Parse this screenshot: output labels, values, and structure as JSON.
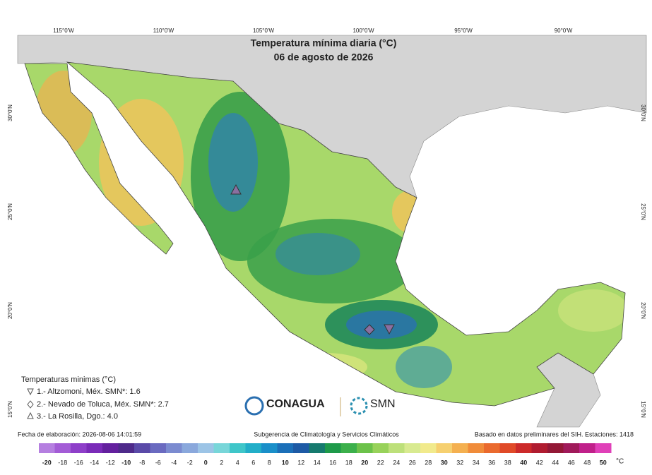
{
  "title": "Temperatura mínima diaria (°C)",
  "subtitle": "06 de agosto de 2026",
  "longitude_labels": [
    "115°0'W",
    "110°0'W",
    "105°0'W",
    "100°0'W",
    "95°0'W",
    "90°0'W"
  ],
  "latitude_labels": [
    "30°0'N",
    "25°0'N",
    "20°0'N",
    "15°0'N"
  ],
  "legend": {
    "title": "Temperaturas minimas (°C)",
    "items": [
      "1.- Altzomoni, Méx. SMN*: 1.6",
      "2.- Nevado de Toluca, Méx. SMN*: 2.7",
      "3.- La Rosilla, Dgo.: 4.0"
    ]
  },
  "logos": [
    "CONAGUA",
    "SMN"
  ],
  "footer": {
    "left": "Fecha de elaboración: 2026-08-06 14:01:59",
    "center": "Subgerencia de Climatología y Servicios Climáticos",
    "right": "Basado en datos preliminares del SIH. Estaciones: 1418"
  },
  "colorbar": {
    "unit": "°C",
    "ticks": [
      -20,
      -18,
      -16,
      -14,
      -12,
      -10,
      -8,
      -6,
      -4,
      -2,
      0,
      2,
      4,
      6,
      8,
      10,
      12,
      14,
      16,
      18,
      20,
      22,
      24,
      26,
      28,
      30,
      32,
      34,
      36,
      38,
      40,
      42,
      44,
      46,
      48,
      50
    ],
    "colors": [
      "#b57fe0",
      "#a35cd6",
      "#8e3fc9",
      "#7a2bb8",
      "#63209e",
      "#4e2a8a",
      "#5a4aa8",
      "#6a6ac0",
      "#7b8bd0",
      "#8aa8dc",
      "#9cc4e6",
      "#78d6d9",
      "#3fc6c9",
      "#22aec8",
      "#1a8fc9",
      "#1b6fb8",
      "#1d5aa5",
      "#167a6e",
      "#1e9a4a",
      "#3cb04b",
      "#6cc24a",
      "#98d25a",
      "#bde07a",
      "#d8ea90",
      "#f1ea8c",
      "#f6d070",
      "#f4b050",
      "#f08c3a",
      "#ea6a2e",
      "#e04a28",
      "#cc2a2a",
      "#b01c30",
      "#931836",
      "#a01a5a",
      "#c0208a",
      "#e040b8"
    ]
  }
}
